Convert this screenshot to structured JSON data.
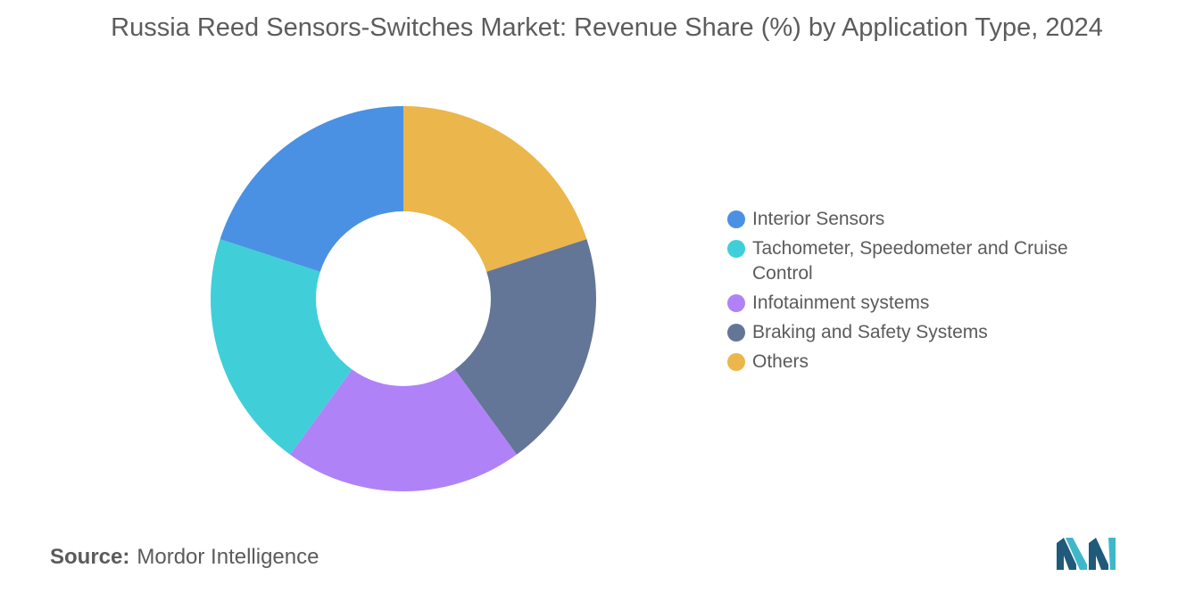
{
  "chart_data": {
    "type": "pie",
    "title": "Russia Reed Sensors-Switches Market: Revenue Share (%) by Application Type, 2024",
    "donut": true,
    "start_angle_deg": 0,
    "categories": [
      "Others",
      "Braking and Safety Systems",
      "Infotainment systems",
      "Tachometer, Speedometer and Cruise Control",
      "Interior Sensors"
    ],
    "values": [
      20,
      20,
      20,
      20,
      20
    ],
    "colors": [
      "#ebb64b",
      "#647697",
      "#b082f8",
      "#40cfd9",
      "#4a91e4"
    ],
    "legend_order": [
      {
        "label": "Interior Sensors",
        "color": "#4a91e4"
      },
      {
        "label": "Tachometer, Speedometer and Cruise Control",
        "color": "#40cfd9"
      },
      {
        "label": "Infotainment systems",
        "color": "#b082f8"
      },
      {
        "label": "Braking and Safety Systems",
        "color": "#647697"
      },
      {
        "label": "Others",
        "color": "#ebb64b"
      }
    ],
    "legend_position": "right"
  },
  "source": {
    "label": "Source:",
    "value": "Mordor Intelligence"
  },
  "logo": {
    "name": "mordor-intelligence-logo",
    "colors": [
      "#1f5a7a",
      "#3fb7c9"
    ]
  }
}
